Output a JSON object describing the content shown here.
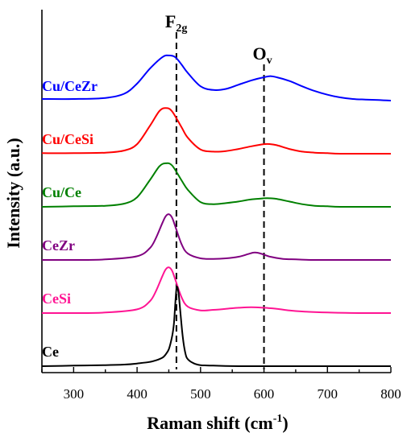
{
  "chart_data": {
    "type": "line",
    "xlabel": "Raman shift (cm",
    "xlabel_sup": "-1",
    "xlabel_close": ")",
    "ylabel": "Intensity (a.u.)",
    "xlim": [
      250,
      800
    ],
    "x_ticks": [
      300,
      400,
      500,
      600,
      700,
      800
    ],
    "y_ticks": "none",
    "reference_lines": [
      {
        "name": "F2g",
        "label_main": "F",
        "label_sub": "2g",
        "x": 462
      },
      {
        "name": "Ov",
        "label_main": "O",
        "label_sub": "v",
        "x": 600
      }
    ],
    "series": [
      {
        "name": "Cu/CeZr",
        "color": "#0000ff",
        "offset": 5.0,
        "x": [
          250,
          300,
          350,
          380,
          400,
          420,
          440,
          450,
          460,
          470,
          480,
          500,
          520,
          540,
          560,
          580,
          600,
          610,
          620,
          640,
          660,
          680,
          700,
          720,
          740,
          760,
          780,
          800
        ],
        "y": [
          0.03,
          0.03,
          0.05,
          0.13,
          0.32,
          0.6,
          0.82,
          0.85,
          0.82,
          0.68,
          0.52,
          0.27,
          0.2,
          0.22,
          0.3,
          0.38,
          0.44,
          0.46,
          0.44,
          0.37,
          0.27,
          0.18,
          0.11,
          0.06,
          0.03,
          0.02,
          0.01,
          0.0
        ]
      },
      {
        "name": "Cu/CeSi",
        "color": "#ff0000",
        "offset": 4.0,
        "x": [
          250,
          300,
          350,
          380,
          400,
          420,
          435,
          445,
          455,
          470,
          480,
          500,
          520,
          540,
          560,
          580,
          600,
          610,
          620,
          640,
          660,
          680,
          700,
          720,
          760,
          800
        ],
        "y": [
          0.01,
          0.01,
          0.02,
          0.06,
          0.18,
          0.52,
          0.8,
          0.86,
          0.8,
          0.5,
          0.3,
          0.08,
          0.04,
          0.05,
          0.09,
          0.14,
          0.18,
          0.18,
          0.16,
          0.09,
          0.04,
          0.02,
          0.01,
          0.0,
          0.0,
          0.0
        ]
      },
      {
        "name": "Cu/Ce",
        "color": "#008000",
        "offset": 3.0,
        "x": [
          250,
          300,
          350,
          380,
          400,
          420,
          435,
          445,
          455,
          470,
          480,
          500,
          520,
          540,
          560,
          580,
          600,
          610,
          620,
          640,
          660,
          680,
          700,
          720,
          760,
          800
        ],
        "y": [
          0.0,
          0.01,
          0.02,
          0.06,
          0.18,
          0.5,
          0.76,
          0.82,
          0.78,
          0.5,
          0.32,
          0.09,
          0.05,
          0.07,
          0.1,
          0.14,
          0.16,
          0.16,
          0.15,
          0.1,
          0.05,
          0.02,
          0.01,
          0.0,
          0.0,
          0.0
        ]
      },
      {
        "name": "CeZr",
        "color": "#800080",
        "offset": 2.0,
        "x": [
          250,
          300,
          350,
          400,
          420,
          430,
          440,
          445,
          450,
          455,
          460,
          470,
          480,
          500,
          520,
          540,
          560,
          575,
          585,
          595,
          610,
          630,
          650,
          680,
          720,
          800
        ],
        "y": [
          0.0,
          0.0,
          0.01,
          0.07,
          0.22,
          0.42,
          0.7,
          0.82,
          0.86,
          0.8,
          0.64,
          0.3,
          0.12,
          0.03,
          0.02,
          0.03,
          0.06,
          0.11,
          0.14,
          0.12,
          0.06,
          0.02,
          0.01,
          0.0,
          0.0,
          0.0
        ]
      },
      {
        "name": "CeSi",
        "color": "#ff1493",
        "offset": 1.0,
        "x": [
          250,
          300,
          350,
          400,
          420,
          430,
          440,
          445,
          450,
          455,
          460,
          470,
          480,
          500,
          520,
          540,
          560,
          580,
          600,
          620,
          640,
          660,
          700,
          750,
          800
        ],
        "y": [
          0.0,
          0.0,
          0.01,
          0.07,
          0.22,
          0.42,
          0.7,
          0.82,
          0.86,
          0.8,
          0.64,
          0.3,
          0.12,
          0.05,
          0.06,
          0.08,
          0.1,
          0.11,
          0.1,
          0.08,
          0.05,
          0.03,
          0.01,
          0.0,
          0.0
        ]
      },
      {
        "name": "Ce",
        "color": "#000000",
        "offset": 0.0,
        "x": [
          250,
          300,
          350,
          380,
          400,
          420,
          430,
          440,
          445,
          450,
          455,
          458,
          462,
          465,
          468,
          472,
          476,
          480,
          490,
          500,
          520,
          560,
          600,
          650,
          700,
          800
        ],
        "y": [
          0.0,
          0.01,
          0.02,
          0.03,
          0.05,
          0.08,
          0.11,
          0.16,
          0.22,
          0.32,
          0.55,
          0.8,
          1.45,
          1.4,
          1.05,
          0.55,
          0.25,
          0.13,
          0.05,
          0.02,
          0.01,
          0.0,
          0.0,
          0.0,
          0.0,
          0.0
        ]
      }
    ]
  }
}
